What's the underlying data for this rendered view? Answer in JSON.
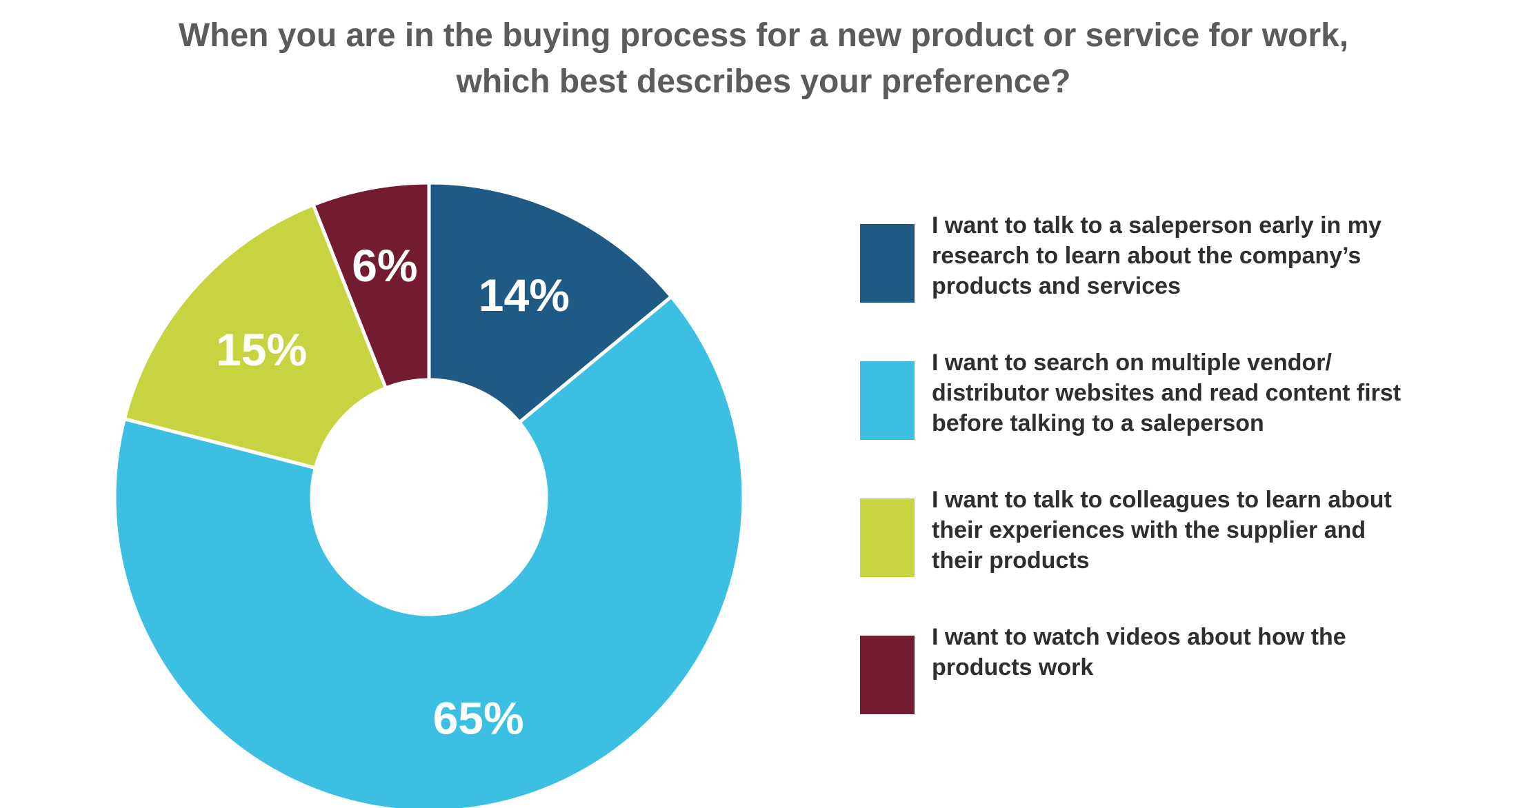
{
  "chart_data": {
    "type": "pie",
    "title_lines": [
      "When you are in the buying process for a new product or service for work,",
      "which best describes your preference?"
    ],
    "donut": true,
    "legend_position": "right",
    "categories": [
      "I want to talk to a saleperson early in my research to learn about the company’s products and services",
      "I want to search on multiple vendor/ distributor websites and read content first before talking to a saleperson",
      "I want to talk to colleagues to learn about their experiences with the supplier and their products",
      "I want to watch videos about how the products work"
    ],
    "legend_lines": [
      [
        "I want to talk to a saleperson early in my",
        "research to learn about the company’s",
        "products and services"
      ],
      [
        "I want to search on multiple vendor/",
        "distributor websites and read content first",
        "before talking to a saleperson"
      ],
      [
        "I want to talk to colleagues to learn about",
        "their experiences with the supplier and",
        "their products"
      ],
      [
        "I want to watch videos about how the",
        "products work"
      ]
    ],
    "values": [
      14,
      65,
      15,
      6
    ],
    "data_labels": [
      "14%",
      "65%",
      "15%",
      "6%"
    ],
    "colors": [
      "#1f5a85",
      "#3bbfe3",
      "#c8d340",
      "#721b31"
    ],
    "unit": "%"
  }
}
